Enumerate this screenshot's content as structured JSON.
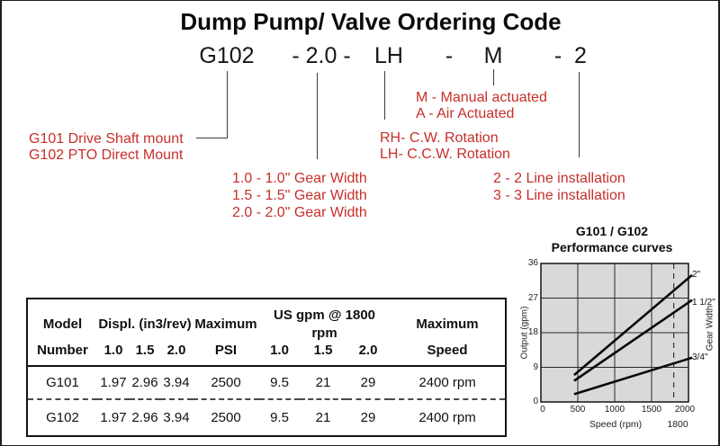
{
  "page": {
    "title": "Dump Pump/ Valve Ordering Code"
  },
  "ordering_code": {
    "segments": [
      "G102",
      "- 2.0 -",
      "LH",
      "-",
      "M",
      "-",
      "2"
    ]
  },
  "annotations": {
    "mount": [
      "G101 Drive Shaft mount",
      "G102 PTO Direct Mount"
    ],
    "gear_width": [
      "1.0 - 1.0\" Gear Width",
      "1.5 - 1.5\" Gear Width",
      "2.0 - 2.0\" Gear Width"
    ],
    "actuation": [
      "M - Manual actuated",
      "A - Air Actuated"
    ],
    "rotation": [
      "RH- C.W. Rotation",
      "LH- C.C.W. Rotation"
    ],
    "installation": [
      "2 - 2 Line installation",
      "3 - 3 Line installation"
    ]
  },
  "table": {
    "header_row1": [
      "Model",
      "Displ. (in3/rev)",
      "Maximum",
      "US gpm @ 1800 rpm",
      "Maximum"
    ],
    "header_row2": [
      "Number",
      "1.0",
      "1.5",
      "2.0",
      "PSI",
      "1.0",
      "1.5",
      "2.0",
      "Speed"
    ],
    "rows": [
      [
        "G101",
        "1.97",
        "2.96",
        "3.94",
        "2500",
        "9.5",
        "21",
        "29",
        "2400 rpm"
      ],
      [
        "G102",
        "1.97",
        "2.96",
        "3.94",
        "2500",
        "9.5",
        "21",
        "29",
        "2400 rpm"
      ]
    ]
  },
  "chart_data": {
    "type": "line",
    "title": "G101 / G102",
    "subtitle": "Performance curves",
    "xlabel": "Speed (rpm)",
    "ylabel": "Output (gpm)",
    "ylabel_right": "Gear Width",
    "xlim": [
      0,
      2000
    ],
    "ylim": [
      0,
      36
    ],
    "xticks": [
      0,
      500,
      1000,
      1500,
      2000
    ],
    "yticks": [
      0,
      9,
      18,
      27,
      36
    ],
    "grid": true,
    "reference_line_x": 1800,
    "series": [
      {
        "name": "2\"",
        "x": [
          450,
          2050
        ],
        "y": [
          7,
          33
        ]
      },
      {
        "name": "1 1/2\"",
        "x": [
          450,
          2050
        ],
        "y": [
          5.5,
          26.5
        ]
      },
      {
        "name": "3/4\"",
        "x": [
          450,
          2050
        ],
        "y": [
          2,
          11.5
        ]
      }
    ]
  },
  "colors": {
    "annotation_red": "#c62f2a",
    "connector_line": "#3c3c3c",
    "chart_plot_bg": "#d9d9d9"
  }
}
